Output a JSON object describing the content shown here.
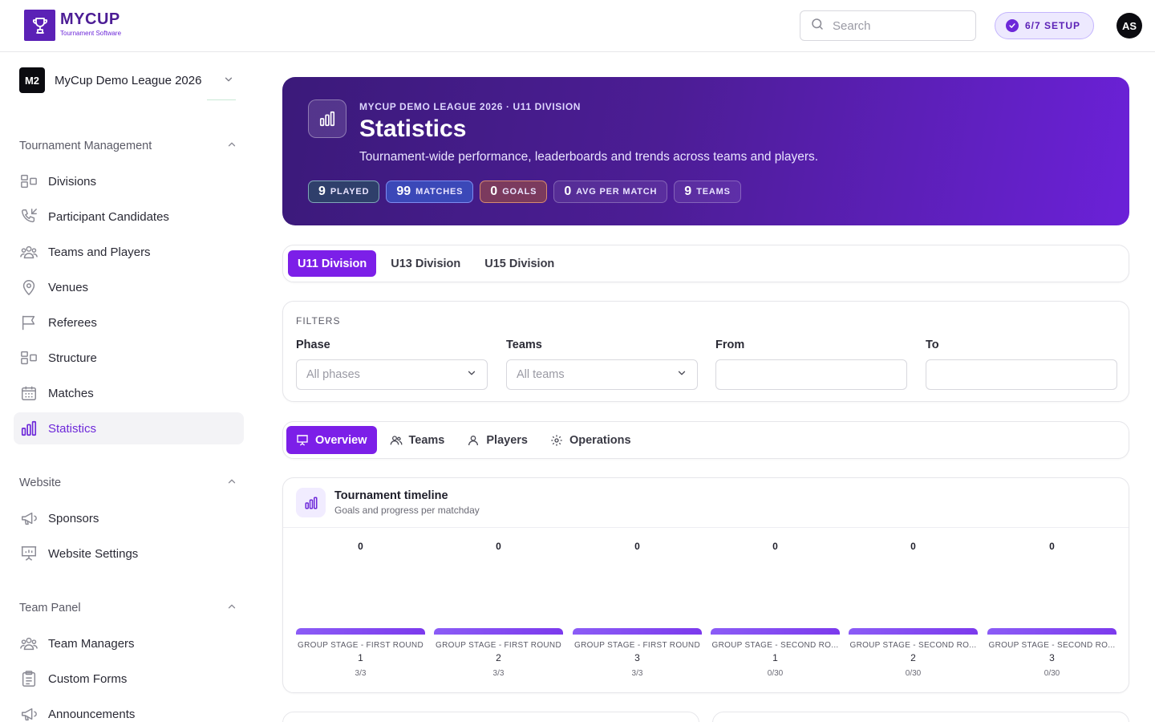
{
  "brand": {
    "name": "MYCUP",
    "subtitle": "Tournament Software"
  },
  "header": {
    "search_placeholder": "Search",
    "setup_label": "6/7 SETUP",
    "avatar_initials": "AS"
  },
  "league": {
    "badge": "M2",
    "name": "MyCup Demo League 2026"
  },
  "sidebar": {
    "sections": [
      {
        "title": "Tournament Management",
        "items": [
          {
            "label": "Divisions",
            "icon": "divisions-icon"
          },
          {
            "label": "Participant Candidates",
            "icon": "phone-incoming-icon"
          },
          {
            "label": "Teams and Players",
            "icon": "users-icon"
          },
          {
            "label": "Venues",
            "icon": "map-pin-icon"
          },
          {
            "label": "Referees",
            "icon": "flag-icon"
          },
          {
            "label": "Structure",
            "icon": "structure-icon"
          },
          {
            "label": "Matches",
            "icon": "calendar-icon"
          },
          {
            "label": "Statistics",
            "icon": "bar-chart-icon",
            "active": true
          }
        ]
      },
      {
        "title": "Website",
        "items": [
          {
            "label": "Sponsors",
            "icon": "megaphone-icon"
          },
          {
            "label": "Website Settings",
            "icon": "presentation-icon"
          }
        ]
      },
      {
        "title": "Team Panel",
        "items": [
          {
            "label": "Team Managers",
            "icon": "users-icon"
          },
          {
            "label": "Custom Forms",
            "icon": "clipboard-icon"
          },
          {
            "label": "Announcements",
            "icon": "megaphone-icon"
          }
        ]
      }
    ]
  },
  "hero": {
    "kicker": "MYCUP DEMO LEAGUE 2026 · U11 DIVISION",
    "title": "Statistics",
    "description": "Tournament-wide performance, leaderboards and trends across teams and players.",
    "stats": [
      {
        "value": "9",
        "label": "PLAYED"
      },
      {
        "value": "99",
        "label": "MATCHES"
      },
      {
        "value": "0",
        "label": "GOALS"
      },
      {
        "value": "0",
        "label": "AVG PER MATCH"
      },
      {
        "value": "9",
        "label": "TEAMS"
      }
    ]
  },
  "division_tabs": [
    {
      "label": "U11 Division",
      "active": true
    },
    {
      "label": "U13 Division"
    },
    {
      "label": "U15 Division"
    }
  ],
  "filters": {
    "heading": "FILTERS",
    "phase_label": "Phase",
    "phase_value": "All phases",
    "teams_label": "Teams",
    "teams_value": "All teams",
    "from_label": "From",
    "from_value": "",
    "to_label": "To",
    "to_value": ""
  },
  "view_tabs": [
    {
      "label": "Overview",
      "icon": "presentation-icon",
      "active": true
    },
    {
      "label": "Teams",
      "icon": "users-icon"
    },
    {
      "label": "Players",
      "icon": "user-icon"
    },
    {
      "label": "Operations",
      "icon": "gear-icon"
    }
  ],
  "timeline": {
    "title": "Tournament timeline",
    "subtitle": "Goals and progress per matchday",
    "matchdays": [
      {
        "goals": "0",
        "phase": "GROUP STAGE - FIRST ROUND",
        "round": "1",
        "progress": "3/3"
      },
      {
        "goals": "0",
        "phase": "GROUP STAGE - FIRST ROUND",
        "round": "2",
        "progress": "3/3"
      },
      {
        "goals": "0",
        "phase": "GROUP STAGE - FIRST ROUND",
        "round": "3",
        "progress": "3/3"
      },
      {
        "goals": "0",
        "phase": "GROUP STAGE - SECOND RO...",
        "round": "1",
        "progress": "0/30"
      },
      {
        "goals": "0",
        "phase": "GROUP STAGE - SECOND RO...",
        "round": "2",
        "progress": "0/30"
      },
      {
        "goals": "0",
        "phase": "GROUP STAGE - SECOND RO...",
        "round": "3",
        "progress": "0/30"
      }
    ]
  },
  "colors": {
    "brand": "#5b21b6",
    "accent": "#7c1fe8"
  }
}
